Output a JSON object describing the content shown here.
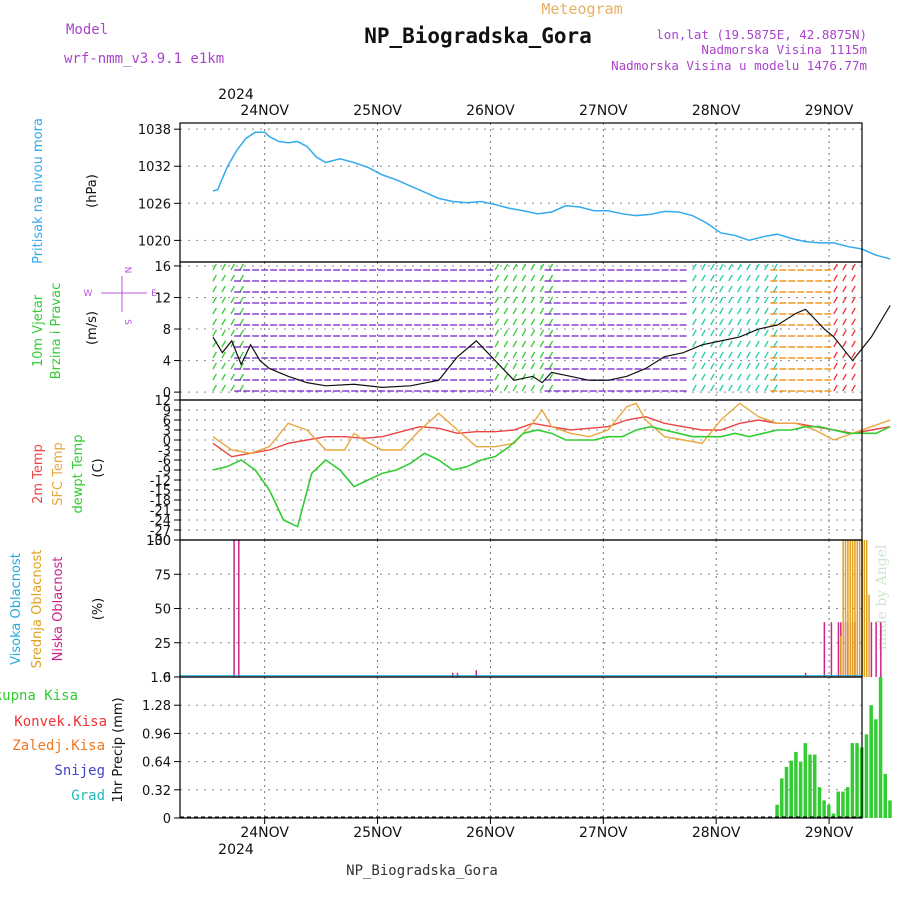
{
  "header": {
    "model_label": "Model",
    "model_name": "wrf-nmm_v3.9.1 e1km",
    "chart_kind": "Meteogram",
    "station_title": "NP_Biogradska_Gora",
    "lonlat": "lon,lat (19.5875E, 42.8875N)",
    "elevation": "Nadmorska Visina 1115m",
    "model_elevation": "Nadmorska Visina u modelu 1476.77m",
    "year_label": "2024",
    "footer_station": "NP_Biogradska_Gora",
    "watermark": "made by Angel"
  },
  "colors": {
    "pressure": "#33aaee",
    "temp2m": "#ee4444",
    "sfc_temp": "#e8a840",
    "dewpoint": "#33cc33",
    "precip": "#33cc33",
    "high_cloud": "#22aadd",
    "mid_cloud": "#e0a020",
    "low_cloud": "#cc2288",
    "purple_text": "#aa44cc",
    "grid": "#666666"
  },
  "chart_data": [
    {
      "type": "line",
      "id": "pressure",
      "labels": [
        "Pritisak na nivou mora",
        "(hPa)"
      ],
      "x_ticks": [
        "24NOV",
        "25NOV",
        "26NOV",
        "27NOV",
        "28NOV",
        "29NOV"
      ],
      "x_range_hours": [
        0,
        144
      ],
      "ylim": [
        1016.5,
        1039
      ],
      "y_ticks": [
        "1038",
        "1032",
        "1026",
        "1020"
      ],
      "series": [
        {
          "x": [
            0,
            1,
            3,
            5,
            7,
            9,
            11,
            12,
            14,
            16,
            18,
            20,
            22,
            24,
            27,
            30,
            33,
            36,
            39,
            42,
            45,
            48,
            51,
            54,
            57,
            60,
            63,
            66,
            69,
            72,
            75,
            78,
            81,
            84,
            87,
            90,
            93,
            96,
            99,
            102,
            105,
            108,
            111,
            114,
            117,
            120,
            123,
            126,
            129,
            132,
            135,
            138,
            141,
            144
          ],
          "values": [
            1028,
            1028.2,
            1031.8,
            1034.5,
            1036.5,
            1037.5,
            1037.5,
            1036.8,
            1036,
            1035.8,
            1036,
            1035.2,
            1033.5,
            1032.6,
            1033.2,
            1032.6,
            1031.8,
            1030.6,
            1029.8,
            1028.8,
            1027.8,
            1026.8,
            1026.3,
            1026.1,
            1026.3,
            1025.8,
            1025.2,
            1024.8,
            1024.3,
            1024.6,
            1025.6,
            1025.4,
            1024.8,
            1024.8,
            1024.3,
            1024,
            1024.2,
            1024.7,
            1024.6,
            1024,
            1022.8,
            1021.2,
            1020.8,
            1020,
            1020.6,
            1021,
            1020.3,
            1019.8,
            1019.6,
            1019.6,
            1019,
            1018.6,
            1017.6,
            1017
          ]
        }
      ]
    },
    {
      "type": "line",
      "id": "wind",
      "labels": [
        "10m Vjetar",
        "Brzina i Pravac",
        "(m/s)"
      ],
      "compass": [
        "N",
        "W",
        "E",
        "S"
      ],
      "x_ticks": [
        "24NOV",
        "25NOV",
        "26NOV",
        "27NOV",
        "28NOV",
        "29NOV"
      ],
      "ylim": [
        -1,
        16.5
      ],
      "y_ticks": [
        "16",
        "12",
        "8",
        "4",
        "0"
      ],
      "series": [
        {
          "name": "speed",
          "x": [
            0,
            2,
            4,
            6,
            8,
            10,
            12,
            16,
            20,
            24,
            30,
            36,
            42,
            48,
            52,
            56,
            60,
            64,
            68,
            70,
            72,
            76,
            80,
            84,
            88,
            92,
            96,
            100,
            104,
            108,
            112,
            116,
            120,
            124,
            126,
            130,
            132,
            136,
            140,
            144
          ],
          "values": [
            7,
            5,
            6.5,
            3.5,
            6,
            4,
            3,
            2,
            1.2,
            0.8,
            1,
            0.6,
            0.8,
            1.5,
            4.5,
            6.5,
            4,
            1.5,
            2,
            1.2,
            2.5,
            2,
            1.5,
            1.5,
            2,
            3,
            4.5,
            5,
            6,
            6.5,
            7,
            8,
            8.5,
            10,
            10.5,
            8,
            7,
            4,
            7,
            11
          ]
        }
      ],
      "bands": [
        {
          "from": 0,
          "to": 6,
          "color": "#33cc33"
        },
        {
          "from": 6,
          "to": 60,
          "color": "#7722cc"
        },
        {
          "from": 60,
          "to": 72,
          "color": "#33cc33"
        },
        {
          "from": 72,
          "to": 102,
          "color": "#7722cc"
        },
        {
          "from": 102,
          "to": 120,
          "color": "#22ccaa"
        },
        {
          "from": 120,
          "to": 132,
          "color": "#ee8800"
        },
        {
          "from": 132,
          "to": 144,
          "color": "#ee3333"
        }
      ]
    },
    {
      "type": "line",
      "id": "temperature",
      "labels": [
        "2m Temp",
        "SFC Temp",
        "dewpt Temp",
        "(C)"
      ],
      "x_ticks": [
        "24NOV",
        "25NOV",
        "26NOV",
        "27NOV",
        "28NOV",
        "29NOV"
      ],
      "ylim": [
        -30,
        12
      ],
      "y_ticks": [
        "12",
        "9",
        "6",
        "3",
        "0",
        "-3",
        "-6",
        "-9",
        "-12",
        "-15",
        "-18",
        "-21",
        "-24",
        "-27",
        "-30"
      ],
      "series": [
        {
          "name": "2m Temp",
          "x": [
            0,
            4,
            8,
            12,
            16,
            20,
            24,
            28,
            32,
            36,
            40,
            44,
            48,
            52,
            56,
            60,
            64,
            68,
            72,
            76,
            80,
            84,
            88,
            92,
            96,
            100,
            104,
            108,
            112,
            116,
            120,
            124,
            128,
            132,
            136,
            140,
            144
          ],
          "values": [
            -1,
            -5,
            -4,
            -3,
            -1,
            0,
            1,
            1,
            0.5,
            1,
            2.5,
            4,
            3.5,
            2,
            2.5,
            2.5,
            3,
            5,
            4,
            3,
            3.5,
            4,
            6,
            7,
            5,
            4,
            3,
            3,
            5,
            6,
            5,
            5,
            4,
            3,
            2,
            3,
            4
          ]
        },
        {
          "name": "SFC Temp",
          "x": [
            0,
            4,
            8,
            12,
            16,
            20,
            24,
            28,
            30,
            32,
            36,
            40,
            44,
            48,
            52,
            56,
            60,
            64,
            68,
            70,
            72,
            76,
            80,
            84,
            88,
            90,
            92,
            96,
            100,
            104,
            108,
            112,
            116,
            120,
            124,
            128,
            132,
            136,
            140,
            144
          ],
          "values": [
            1,
            -3,
            -4,
            -2,
            5,
            3,
            -3,
            -3,
            2,
            0,
            -3,
            -3,
            3,
            8,
            3,
            -2,
            -2,
            -1,
            5,
            9,
            4,
            2,
            1,
            3,
            10,
            11,
            6,
            1,
            0,
            -1,
            6,
            11,
            7,
            5,
            5,
            3,
            0,
            2,
            4,
            6
          ]
        },
        {
          "name": "dewpt Temp",
          "x": [
            0,
            3,
            6,
            9,
            12,
            15,
            18,
            21,
            24,
            27,
            30,
            33,
            36,
            39,
            42,
            45,
            48,
            51,
            54,
            57,
            60,
            63,
            66,
            69,
            72,
            75,
            78,
            81,
            84,
            87,
            90,
            93,
            96,
            99,
            102,
            105,
            108,
            111,
            114,
            117,
            120,
            123,
            126,
            129,
            132,
            135,
            138,
            141,
            144
          ],
          "values": [
            -9,
            -8,
            -6,
            -9,
            -15,
            -24,
            -26,
            -10,
            -6,
            -9,
            -14,
            -12,
            -10,
            -9,
            -7,
            -4,
            -6,
            -9,
            -8,
            -6,
            -5,
            -2,
            2,
            3,
            2,
            0,
            0,
            0,
            1,
            1,
            3,
            4,
            3,
            2,
            1,
            1,
            1,
            2,
            1,
            2,
            3,
            3,
            4,
            4,
            3,
            2,
            2,
            2,
            4
          ]
        }
      ]
    },
    {
      "type": "bar",
      "id": "cloud",
      "labels": [
        "Visoka Oblacnost",
        "Srednja Oblacnost",
        "Niska Oblacnost",
        "(%)"
      ],
      "x_ticks": [
        "24NOV",
        "25NOV",
        "26NOV",
        "27NOV",
        "28NOV",
        "29NOV"
      ],
      "ylim": [
        0,
        100
      ],
      "y_ticks": [
        "100",
        "75",
        "50",
        "25",
        "0"
      ],
      "series": [
        {
          "name": "Niska Oblacnost",
          "x": [
            4.5,
            5.5,
            51,
            52,
            56,
            126,
            130,
            131.5,
            133,
            133.5,
            134.5,
            135,
            136,
            136.5,
            140,
            141,
            142
          ],
          "values": [
            100,
            100,
            3,
            3,
            5,
            3,
            40,
            40,
            40,
            40,
            40,
            40,
            40,
            40,
            40,
            40,
            40
          ]
        },
        {
          "name": "Srednja Oblacnost",
          "x": [
            133.5,
            134,
            134.5,
            135,
            135.5,
            136,
            136.5,
            137,
            137.5,
            138,
            138.5,
            139,
            139.5
          ],
          "values": [
            30,
            100,
            100,
            100,
            100,
            100,
            100,
            100,
            100,
            100,
            100,
            100,
            60
          ]
        },
        {
          "name": "Visoka Oblacnost",
          "x": [
            0,
            144
          ],
          "values": [
            1,
            1
          ]
        }
      ]
    },
    {
      "type": "bar",
      "id": "precip",
      "labels": [
        "1hr Precip (mm)"
      ],
      "legend": [
        {
          "label": "Ukupna Kisa",
          "color": "#33cc33"
        },
        {
          "label": "Konvek.Kisa",
          "color": "#ee3333"
        },
        {
          "label": "Zaledj.Kisa",
          "color": "#ee7722"
        },
        {
          "label": "Snijeg",
          "color": "#4444cc"
        },
        {
          "label": "Grad",
          "color": "#22bbbb"
        }
      ],
      "x_ticks": [
        "24NOV",
        "25NOV",
        "26NOV",
        "27NOV",
        "28NOV",
        "29NOV"
      ],
      "ylim": [
        0,
        1.6
      ],
      "y_ticks": [
        "1.6",
        "1.28",
        "0.96",
        "0.64",
        "0.32",
        "0"
      ],
      "series": [
        {
          "name": "Ukupna Kisa",
          "x": [
            120,
            121,
            122,
            123,
            124,
            125,
            126,
            127,
            128,
            129,
            130,
            131,
            132,
            133,
            134,
            135,
            136,
            137,
            138,
            139,
            140,
            141,
            142,
            143,
            144
          ],
          "values": [
            0.15,
            0.45,
            0.58,
            0.65,
            0.75,
            0.64,
            0.85,
            0.72,
            0.72,
            0.35,
            0.2,
            0.15,
            0.05,
            0.3,
            0.3,
            0.35,
            0.85,
            0.85,
            0.8,
            0.95,
            1.28,
            1.12,
            1.6,
            0.5,
            0.2
          ]
        }
      ]
    }
  ]
}
